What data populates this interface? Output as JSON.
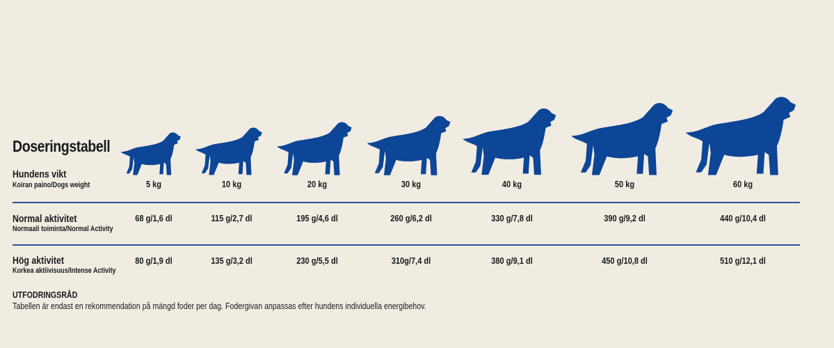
{
  "title": "Doseringstabell",
  "colors": {
    "accent": "#0d4597",
    "background": "#f0ece2"
  },
  "rows": {
    "weight": {
      "label": "Hundens vikt",
      "sub": "Koiran paino/Dogs weight"
    },
    "normal": {
      "label": "Normal aktivitet",
      "sub": "Normaali toiminta/Normal Activity"
    },
    "high": {
      "label": "Hög aktivitet",
      "sub": "Korkea aktiivisuus/Intense Activity"
    }
  },
  "columns": [
    {
      "weight": "5 kg",
      "normal": "68 g/1,6 dl",
      "high": "80 g/1,9 dl",
      "icon": "dog-silhouette-icon"
    },
    {
      "weight": "10 kg",
      "normal": "115 g/2,7 dl",
      "high": "135 g/3,2 dl",
      "icon": "dog-silhouette-icon"
    },
    {
      "weight": "20 kg",
      "normal": "195 g/4,6 dl",
      "high": "230 g/5,5 dl",
      "icon": "dog-silhouette-icon"
    },
    {
      "weight": "30 kg",
      "normal": "260 g/6,2 dl",
      "high": "310g/7,4 dl",
      "icon": "dog-silhouette-icon"
    },
    {
      "weight": "40 kg",
      "normal": "330 g/7,8 dl",
      "high": "380 g/9,1 dl",
      "icon": "dog-silhouette-icon"
    },
    {
      "weight": "50 kg",
      "normal": "390 g/9,2 dl",
      "high": "450 g/10,8 dl",
      "icon": "dog-silhouette-icon"
    },
    {
      "weight": "60 kg",
      "normal": "440 g/10,4 dl",
      "high": "510 g/12,1 dl",
      "icon": "dog-silhouette-icon"
    }
  ],
  "footer": {
    "heading": "UTFODRINGSRÅD",
    "text": "Tabellen är endast en rekommendation på mängd foder per dag. Fodergivan anpassas efter hundens individuella energibehov."
  }
}
